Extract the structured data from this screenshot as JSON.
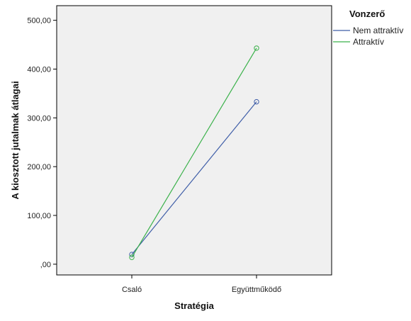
{
  "chart_data": {
    "type": "line",
    "xlabel": "Stratégia",
    "ylabel": "A kiosztott jutalmak átlagai",
    "categories": [
      "Csaló",
      "Együttműködő"
    ],
    "ylim": [
      -22,
      530
    ],
    "yticks": [
      0,
      100,
      200,
      300,
      400,
      500
    ],
    "ytick_labels": [
      ",00",
      "100,00",
      "200,00",
      "300,00",
      "400,00",
      "500,00"
    ],
    "grid": false,
    "plot_background": "#f0f0f0",
    "legend": {
      "title": "Vonzerő",
      "position": "right"
    },
    "series": [
      {
        "name": "Nem attraktív",
        "values": [
          20,
          333
        ],
        "color": "#3f5ea8",
        "marker": "circle"
      },
      {
        "name": "Attraktív",
        "values": [
          14,
          443
        ],
        "color": "#3ab14a",
        "marker": "circle"
      }
    ]
  }
}
